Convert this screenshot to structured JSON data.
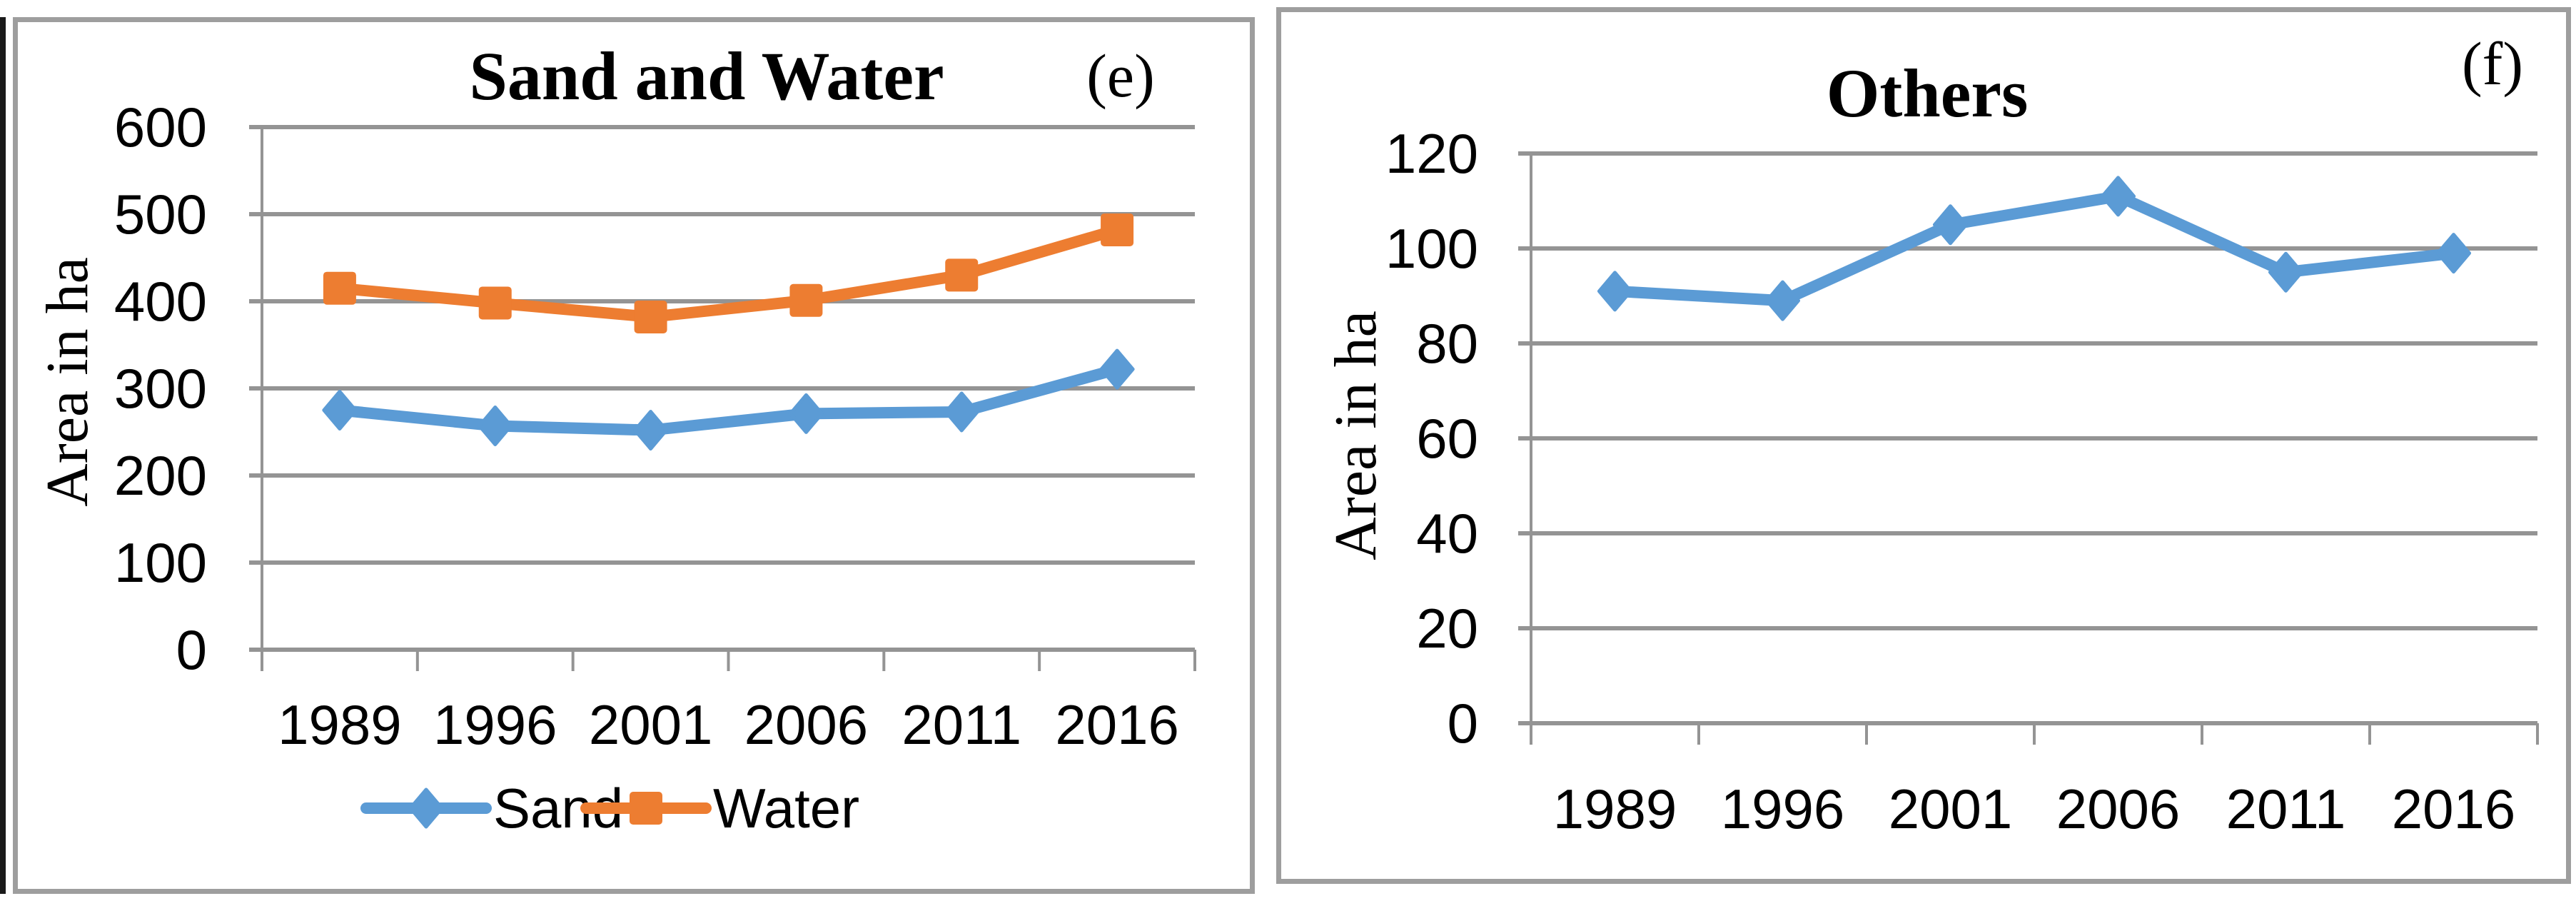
{
  "chart_data": [
    {
      "type": "line",
      "panel_label": "(e)",
      "title": "Sand and Water",
      "ylabel": "Area in ha",
      "xlabel": "",
      "categories": [
        "1989",
        "1996",
        "2001",
        "2006",
        "2011",
        "2016"
      ],
      "series": [
        {
          "name": "Sand",
          "color": "#5B9BD5",
          "marker": "diamond",
          "values": [
            275,
            257,
            252,
            271,
            273,
            322
          ]
        },
        {
          "name": "Water",
          "color": "#ED7D31",
          "marker": "square",
          "values": [
            415,
            398,
            382,
            401,
            430,
            482
          ]
        }
      ],
      "ylim": [
        0,
        600
      ],
      "ytick_step": 100,
      "yticks": [
        0,
        100,
        200,
        300,
        400,
        500,
        600
      ],
      "grid": true,
      "legend_position": "bottom"
    },
    {
      "type": "line",
      "panel_label": "(f)",
      "title": "Others",
      "ylabel": "Area in ha",
      "xlabel": "",
      "categories": [
        "1989",
        "1996",
        "2001",
        "2006",
        "2011",
        "2016"
      ],
      "series": [
        {
          "name": "Others",
          "color": "#5B9BD5",
          "marker": "diamond",
          "values": [
            91,
            89,
            105,
            111,
            95,
            99
          ]
        }
      ],
      "ylim": [
        0,
        120
      ],
      "ytick_step": 20,
      "yticks": [
        0,
        20,
        40,
        60,
        80,
        100,
        120
      ],
      "grid": true,
      "legend_position": "none"
    }
  ],
  "colors": {
    "series_blue": "#5B9BD5",
    "series_orange": "#ED7D31",
    "gridline": "#949494",
    "panel_border": "#9E9E9E",
    "text": "#000000"
  }
}
